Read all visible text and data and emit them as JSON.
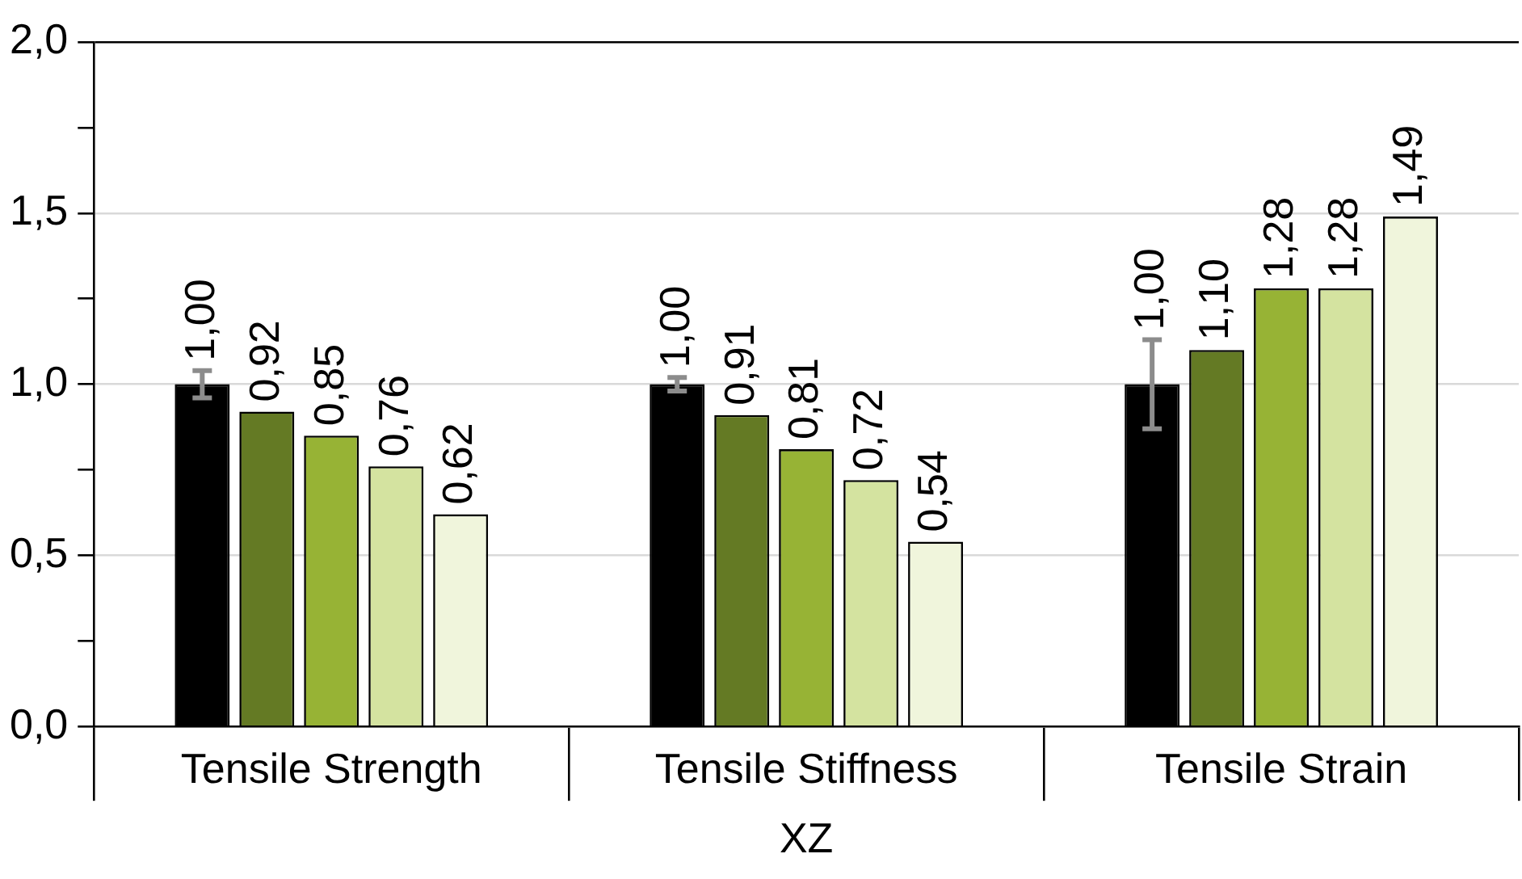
{
  "chart_data": {
    "type": "bar",
    "xlabel": "XZ",
    "categories": [
      "Tensile Strength",
      "Tensile Stiffness",
      "Tensile Strain"
    ],
    "series": [
      {
        "color": "#000000",
        "values": [
          1.0,
          1.0,
          1.0
        ],
        "errors": [
          0.04,
          0.02,
          0.13
        ],
        "value_labels": [
          "1,00",
          "1,00",
          "1,00"
        ]
      },
      {
        "color": "#647a24",
        "values": [
          0.92,
          0.91,
          1.1
        ],
        "value_labels": [
          "0,92",
          "0,91",
          "1,10"
        ]
      },
      {
        "color": "#97b335",
        "values": [
          0.85,
          0.81,
          1.28
        ],
        "value_labels": [
          "0,85",
          "0,81",
          "1,28"
        ]
      },
      {
        "color": "#d4e3a0",
        "values": [
          0.76,
          0.72,
          1.28
        ],
        "value_labels": [
          "0,76",
          "0,72",
          "1,28"
        ]
      },
      {
        "color": "#f0f5dc",
        "values": [
          0.62,
          0.54,
          1.49
        ],
        "value_labels": [
          "0,62",
          "0,54",
          "1,49"
        ]
      }
    ],
    "ylim": [
      0,
      2
    ],
    "yticks": [
      {
        "value": 0,
        "label": "0,0"
      },
      {
        "value": 0.25,
        "label": null
      },
      {
        "value": 0.5,
        "label": "0,5"
      },
      {
        "value": 0.75,
        "label": null
      },
      {
        "value": 1,
        "label": "1,0"
      },
      {
        "value": 1.25,
        "label": null
      },
      {
        "value": 1.5,
        "label": "1,5"
      },
      {
        "value": 1.75,
        "label": null
      },
      {
        "value": 2,
        "label": "2,0"
      }
    ],
    "grid": "y",
    "legend": false
  }
}
